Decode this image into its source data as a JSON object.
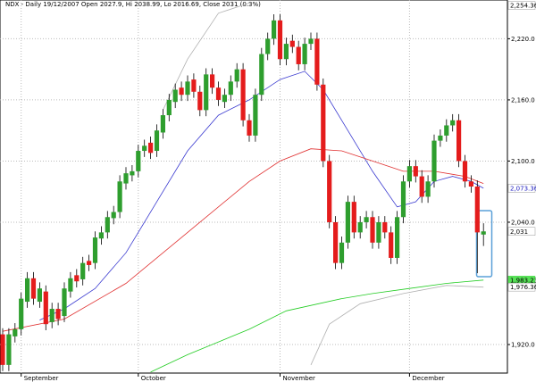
{
  "chart_data": {
    "type": "candlestick",
    "title": "NDX - Daily 19/12/2007 Open 2027.9, Hi 2038.99, Lo 2016.69, Close 2031 (0.3%)",
    "categories": [
      null,
      null,
      null,
      "September",
      null,
      null,
      null,
      null,
      null,
      null,
      null,
      null,
      null,
      null,
      null,
      null,
      null,
      null,
      null,
      null,
      null,
      null,
      "October",
      null,
      null,
      null,
      null,
      null,
      null,
      null,
      null,
      null,
      null,
      null,
      null,
      null,
      null,
      null,
      null,
      null,
      null,
      null,
      null,
      null,
      null,
      "November",
      null,
      null,
      null,
      null,
      null,
      null,
      null,
      null,
      null,
      null,
      null,
      null,
      null,
      null,
      null,
      null,
      null,
      null,
      null,
      null,
      "December",
      null,
      null,
      null,
      null,
      null,
      null,
      null,
      null,
      null,
      null,
      null,
      null
    ],
    "open": [
      1930,
      1900,
      1928,
      1935,
      1962,
      1985,
      1962,
      1972,
      1942,
      1955,
      1948,
      1972,
      1988,
      1984,
      2002,
      2000,
      2024,
      2030,
      2044,
      2050,
      2078,
      2086,
      2090,
      2110,
      2118,
      2110,
      2128,
      2145,
      2158,
      2172,
      2165,
      2180,
      2168,
      2150,
      2185,
      2172,
      2158,
      2165,
      2178,
      2190,
      2140,
      2125,
      2165,
      2205,
      2220,
      2238,
      2200,
      2218,
      2212,
      2195,
      2215,
      2220,
      2175,
      2100,
      2040,
      2000,
      2020,
      2060,
      2030,
      2040,
      2045,
      2020,
      2040,
      2030,
      2005,
      2045,
      2080,
      2095,
      2085,
      2065,
      2080,
      2120,
      2125,
      2135,
      2140,
      2100,
      2080,
      2075,
      2027.9
    ],
    "high": [
      1936,
      1936,
      1941,
      1971,
      1991,
      1991,
      1981,
      1978,
      1961,
      1961,
      1981,
      1991,
      1994,
      2006,
      2008,
      2031,
      2036,
      2051,
      2056,
      2086,
      2094,
      2096,
      2116,
      2121,
      2124,
      2136,
      2151,
      2166,
      2176,
      2178,
      2184,
      2186,
      2174,
      2191,
      2191,
      2178,
      2171,
      2184,
      2196,
      2196,
      2146,
      2171,
      2211,
      2226,
      2244,
      2244,
      2221,
      2224,
      2218,
      2221,
      2226,
      2226,
      2181,
      2106,
      2046,
      2026,
      2066,
      2066,
      2046,
      2051,
      2051,
      2046,
      2046,
      2036,
      2051,
      2086,
      2101,
      2101,
      2091,
      2086,
      2126,
      2131,
      2141,
      2146,
      2146,
      2106,
      2086,
      2081,
      2038.99
    ],
    "low": [
      1894,
      1894,
      1922,
      1929,
      1956,
      1959,
      1956,
      1934,
      1936,
      1939,
      1942,
      1966,
      1976,
      1978,
      1992,
      1994,
      2018,
      2024,
      2038,
      2044,
      2072,
      2080,
      2084,
      2104,
      2102,
      2104,
      2122,
      2139,
      2152,
      2159,
      2159,
      2162,
      2144,
      2144,
      2166,
      2154,
      2152,
      2159,
      2172,
      2134,
      2119,
      2119,
      2159,
      2199,
      2214,
      2194,
      2194,
      2206,
      2189,
      2189,
      2209,
      2169,
      2094,
      2034,
      1994,
      1994,
      2014,
      2024,
      2024,
      2034,
      2014,
      2014,
      2024,
      1999,
      1999,
      2039,
      2074,
      2079,
      2059,
      2059,
      2074,
      2114,
      2119,
      2129,
      2094,
      2074,
      2069,
      1990,
      2016.69
    ],
    "close": [
      1900,
      1930,
      1935,
      1965,
      1985,
      1965,
      1975,
      1940,
      1955,
      1945,
      1975,
      1985,
      1982,
      2000,
      1998,
      2025,
      2030,
      2045,
      2050,
      2080,
      2088,
      2090,
      2110,
      2115,
      2108,
      2130,
      2145,
      2160,
      2170,
      2165,
      2178,
      2168,
      2150,
      2185,
      2172,
      2160,
      2165,
      2178,
      2190,
      2140,
      2125,
      2165,
      2205,
      2220,
      2238,
      2200,
      2215,
      2212,
      2195,
      2215,
      2220,
      2175,
      2100,
      2040,
      2000,
      2020,
      2060,
      2030,
      2040,
      2045,
      2020,
      2040,
      2030,
      2005,
      2045,
      2080,
      2095,
      2085,
      2065,
      2080,
      2120,
      2125,
      2135,
      2140,
      2100,
      2080,
      2075,
      2030,
      2031
    ],
    "up_color": "#2e9e2e",
    "down_color": "#e41c1c",
    "overlays": [
      {
        "color": "#3a3ad0",
        "x": [
          6,
          10,
          15,
          20,
          25,
          30,
          35,
          40,
          45,
          49,
          52,
          55,
          60,
          64,
          67,
          70,
          73,
          76,
          78
        ],
        "values": [
          1944,
          1955,
          1975,
          2010,
          2060,
          2110,
          2145,
          2160,
          2180,
          2188,
          2170,
          2140,
          2090,
          2055,
          2060,
          2080,
          2085,
          2080,
          2073.36
        ]
      },
      {
        "color": "#e03030",
        "x": [
          0,
          10,
          20,
          30,
          40,
          45,
          50,
          55,
          60,
          65,
          70,
          75,
          78
        ],
        "values": [
          1933,
          1945,
          1980,
          2030,
          2080,
          2100,
          2112,
          2110,
          2100,
          2090,
          2090,
          2085,
          2078
        ]
      },
      {
        "color": "#22cc22",
        "x": [
          24,
          30,
          40,
          46,
          55,
          60,
          66,
          72,
          78
        ],
        "values": [
          1893,
          1910,
          1935,
          1953,
          1965,
          1970,
          1975,
          1980,
          1983.23
        ]
      },
      {
        "color": "#b0b0b0",
        "x": [
          26,
          30,
          35,
          40
        ],
        "values": [
          2150,
          2200,
          2245,
          2255
        ]
      },
      {
        "color": "#b0b0b0",
        "x": [
          50,
          53,
          58,
          65,
          72,
          78
        ],
        "values": [
          1900,
          1940,
          1960,
          1970,
          1978,
          1976.36
        ]
      }
    ],
    "ylim": [
      1892,
      2258
    ],
    "yticks": [
      {
        "value": 1920,
        "label": "1,920.0"
      },
      {
        "value": 2040,
        "label": "2,040.0"
      },
      {
        "value": 2100,
        "label": "2,100.0"
      },
      {
        "value": 2160,
        "label": "2,160.0"
      },
      {
        "value": 2220,
        "label": "2,220.0"
      }
    ],
    "value_tags": [
      {
        "value": 2254.36,
        "label": "2,254.36",
        "color": "#ffffff",
        "text_color": "#000000"
      },
      {
        "value": 2073.36,
        "label": "2,073.36",
        "color": "#ffffff",
        "text_color": "#2020c0"
      },
      {
        "value": 2031,
        "label": "2,031",
        "color": "#ffffff",
        "text_color": "#000000"
      },
      {
        "value": 1983.23,
        "label": "1,983.23",
        "color": "#55e055",
        "text_color": "#000000"
      },
      {
        "value": 1976.36,
        "label": "1,976.36",
        "color": "#ffffff",
        "text_color": "#000000"
      }
    ],
    "grid": true
  }
}
